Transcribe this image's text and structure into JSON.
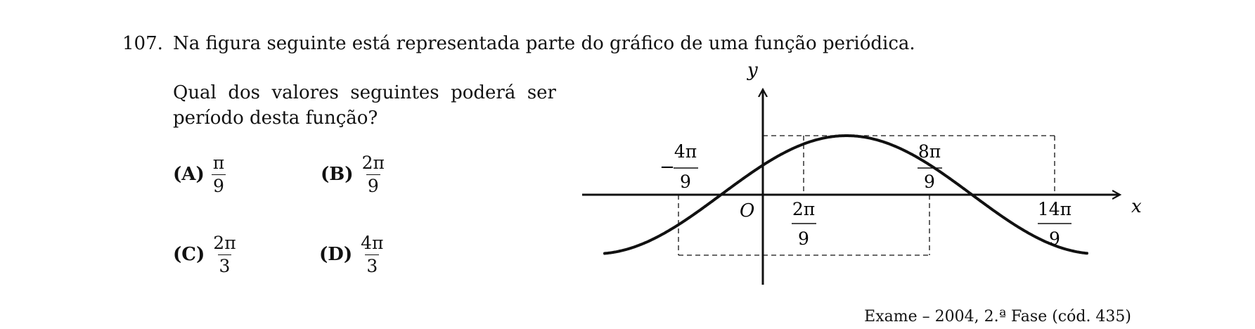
{
  "question": {
    "number": "107.",
    "statement": "Na figura seguinte está representada parte do gráfico de uma função periódica.",
    "prompt": "Qual dos valores seguintes poderá ser período desta função?"
  },
  "options": [
    {
      "letter": "(A)",
      "numerator": "π",
      "denominator": "9"
    },
    {
      "letter": "(B)",
      "numerator": "2π",
      "denominator": "9"
    },
    {
      "letter": "(C)",
      "numerator": "2π",
      "denominator": "3"
    },
    {
      "letter": "(D)",
      "numerator": "4π",
      "denominator": "3"
    }
  ],
  "graph": {
    "y_axis_label": "y",
    "x_axis_label": "x",
    "origin_label": "O",
    "tick_labels": [
      {
        "sign": "−",
        "numerator": "4π",
        "denominator": "9"
      },
      {
        "sign": "",
        "numerator": "2π",
        "denominator": "9"
      },
      {
        "sign": "",
        "numerator": "8π",
        "denominator": "9"
      },
      {
        "sign": "",
        "numerator": "14π",
        "denominator": "9"
      }
    ]
  },
  "source": "Exame – 2004, 2.ª Fase (cód. 435)"
}
